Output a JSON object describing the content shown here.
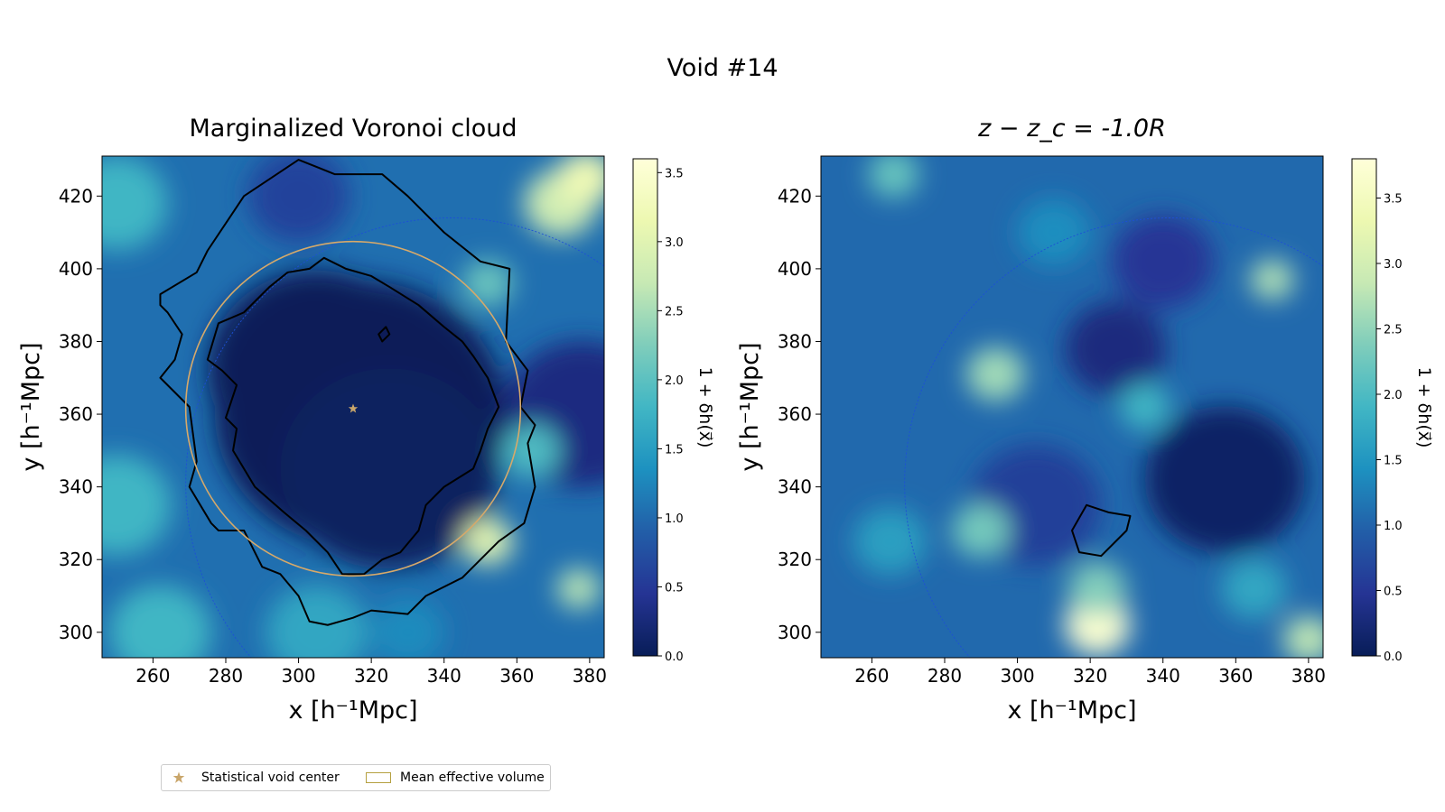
{
  "chart_data": {
    "suptitle": "Void #14",
    "panels": [
      {
        "type": "heatmap",
        "title": "Marginalized Voronoi cloud",
        "title_math": false,
        "xlabel": "x [h⁻¹Mpc]",
        "ylabel": "y [h⁻¹Mpc]",
        "xlim": [
          246,
          384
        ],
        "ylim": [
          293,
          431
        ],
        "xticks": [
          260,
          280,
          300,
          320,
          340,
          360,
          380
        ],
        "yticks": [
          300,
          320,
          340,
          360,
          380,
          400,
          420
        ],
        "colorbar": {
          "label": "1 + δh(x⃗)",
          "range": [
            0.0,
            3.6
          ],
          "ticks": [
            "0.0",
            "0.5",
            "1.0",
            "1.5",
            "2.0",
            "2.5",
            "3.0",
            "3.5"
          ],
          "tick_values": [
            0.0,
            0.5,
            1.0,
            1.5,
            2.0,
            2.5,
            3.0,
            3.5
          ]
        },
        "statistical_void_center": {
          "x": 315,
          "y": 361.5
        },
        "mean_effective_volume_circle": {
          "cx": 315,
          "cy": 361.5,
          "r": 46
        },
        "dashed_circle": {
          "cx": 342,
          "cy": 341,
          "r": 73
        },
        "density_blobs": [
          {
            "x": 317,
            "y": 360,
            "r": 40,
            "v": 0.0
          },
          {
            "x": 305,
            "y": 372,
            "r": 30,
            "v": 0.0
          },
          {
            "x": 325,
            "y": 345,
            "r": 30,
            "v": 0.05
          },
          {
            "x": 378,
            "y": 360,
            "r": 22,
            "v": 0.3
          },
          {
            "x": 300,
            "y": 420,
            "r": 14,
            "v": 0.6
          },
          {
            "x": 352,
            "y": 396,
            "r": 7,
            "v": 2.1
          },
          {
            "x": 372,
            "y": 418,
            "r": 10,
            "v": 2.8
          },
          {
            "x": 379,
            "y": 425,
            "r": 8,
            "v": 3.2
          },
          {
            "x": 250,
            "y": 335,
            "r": 15,
            "v": 1.8
          },
          {
            "x": 352,
            "y": 325,
            "r": 7,
            "v": 3.0
          },
          {
            "x": 377,
            "y": 312,
            "r": 6,
            "v": 2.6
          },
          {
            "x": 262,
            "y": 300,
            "r": 14,
            "v": 1.8
          },
          {
            "x": 305,
            "y": 300,
            "r": 14,
            "v": 1.6
          },
          {
            "x": 250,
            "y": 418,
            "r": 14,
            "v": 1.8
          },
          {
            "x": 364,
            "y": 350,
            "r": 8,
            "v": 1.9
          },
          {
            "x": 330,
            "y": 300,
            "r": 10,
            "v": 1.3
          }
        ],
        "contours": [
          [
            [
              300,
              430
            ],
            [
              285,
              420
            ],
            [
              275,
              405
            ],
            [
              272,
              399
            ],
            [
              262,
              393
            ],
            [
              262,
              390
            ],
            [
              264,
              388
            ],
            [
              268,
              382
            ],
            [
              266,
              375
            ],
            [
              262,
              370
            ],
            [
              270,
              362
            ],
            [
              272,
              347
            ],
            [
              270,
              340
            ],
            [
              276,
              330
            ],
            [
              278,
              328
            ],
            [
              285,
              328
            ],
            [
              288,
              322
            ],
            [
              290,
              318
            ],
            [
              295,
              316
            ],
            [
              300,
              310
            ],
            [
              303,
              303
            ],
            [
              308,
              302
            ],
            [
              315,
              304
            ],
            [
              320,
              306
            ],
            [
              330,
              305
            ],
            [
              335,
              310
            ],
            [
              345,
              315
            ],
            [
              355,
              325
            ],
            [
              362,
              330
            ],
            [
              365,
              340
            ],
            [
              363,
              352
            ],
            [
              365,
              357
            ],
            [
              361,
              362
            ],
            [
              363,
              372
            ],
            [
              357,
              380
            ],
            [
              358,
              400
            ],
            [
              350,
              402
            ],
            [
              340,
              410
            ],
            [
              330,
              420
            ],
            [
              323,
              426
            ],
            [
              310,
              426
            ],
            [
              305,
              428
            ],
            [
              300,
              430
            ]
          ],
          [
            [
              297,
              399
            ],
            [
              292,
              395
            ],
            [
              285,
              388
            ],
            [
              278,
              385
            ],
            [
              275,
              375
            ],
            [
              279,
              372
            ],
            [
              283,
              368
            ],
            [
              280,
              359
            ],
            [
              283,
              356
            ],
            [
              282,
              350
            ],
            [
              285,
              345
            ],
            [
              288,
              340
            ],
            [
              296,
              333
            ],
            [
              302,
              328
            ],
            [
              308,
              322
            ],
            [
              312,
              316
            ],
            [
              318,
              316
            ],
            [
              323,
              320
            ],
            [
              328,
              322
            ],
            [
              333,
              328
            ],
            [
              335,
              335
            ],
            [
              340,
              340
            ],
            [
              348,
              345
            ],
            [
              350,
              350
            ],
            [
              352,
              356
            ],
            [
              355,
              362
            ],
            [
              352,
              370
            ],
            [
              348,
              376
            ],
            [
              345,
              380
            ],
            [
              340,
              384
            ],
            [
              333,
              390
            ],
            [
              325,
              395
            ],
            [
              320,
              398
            ],
            [
              313,
              400
            ],
            [
              307,
              403
            ],
            [
              303,
              400
            ],
            [
              297,
              399
            ]
          ],
          [
            [
              324,
              384
            ],
            [
              322,
              382
            ],
            [
              323,
              380
            ],
            [
              323,
              380
            ],
            [
              325,
              382
            ],
            [
              324,
              384
            ]
          ]
        ]
      },
      {
        "type": "heatmap",
        "title": "z − z_c = -1.0R",
        "title_math": true,
        "xlabel": "x [h⁻¹Mpc]",
        "ylabel": "y [h⁻¹Mpc]",
        "xlim": [
          246,
          384
        ],
        "ylim": [
          293,
          431
        ],
        "xticks": [
          260,
          280,
          300,
          320,
          340,
          360,
          380
        ],
        "yticks": [
          300,
          320,
          340,
          360,
          380,
          400,
          420
        ],
        "colorbar": {
          "label": "1 + δh(x⃗)",
          "range": [
            0.0,
            3.8
          ],
          "ticks": [
            "0.0",
            "0.5",
            "1.0",
            "1.5",
            "2.0",
            "2.5",
            "3.0",
            "3.5"
          ],
          "tick_values": [
            0.0,
            0.5,
            1.0,
            1.5,
            2.0,
            2.5,
            3.0,
            3.5
          ]
        },
        "dashed_circle": {
          "cx": 342,
          "cy": 341,
          "r": 73
        },
        "density_blobs": [
          {
            "x": 357,
            "y": 342,
            "r": 22,
            "v": 0.1
          },
          {
            "x": 327,
            "y": 378,
            "r": 14,
            "v": 0.3
          },
          {
            "x": 305,
            "y": 335,
            "r": 18,
            "v": 0.6
          },
          {
            "x": 340,
            "y": 402,
            "r": 14,
            "v": 0.5
          },
          {
            "x": 294,
            "y": 371,
            "r": 8,
            "v": 2.6
          },
          {
            "x": 322,
            "y": 302,
            "r": 9,
            "v": 3.7
          },
          {
            "x": 322,
            "y": 312,
            "r": 8,
            "v": 2.4
          },
          {
            "x": 290,
            "y": 328,
            "r": 8,
            "v": 2.3
          },
          {
            "x": 370,
            "y": 397,
            "r": 6,
            "v": 2.7
          },
          {
            "x": 380,
            "y": 298,
            "r": 7,
            "v": 2.8
          },
          {
            "x": 266,
            "y": 426,
            "r": 7,
            "v": 2.2
          },
          {
            "x": 335,
            "y": 362,
            "r": 7,
            "v": 1.9
          },
          {
            "x": 265,
            "y": 325,
            "r": 10,
            "v": 1.6
          },
          {
            "x": 365,
            "y": 312,
            "r": 9,
            "v": 1.7
          },
          {
            "x": 310,
            "y": 410,
            "r": 10,
            "v": 1.4
          }
        ],
        "contours": [
          [
            [
              319,
              335
            ],
            [
              315,
              328
            ],
            [
              317,
              322
            ],
            [
              323,
              321
            ],
            [
              330,
              328
            ],
            [
              331,
              332
            ],
            [
              325,
              333
            ],
            [
              319,
              335
            ]
          ]
        ]
      }
    ],
    "legend": {
      "placement": "bottom-left",
      "entries": [
        {
          "label": "Statistical void center",
          "marker": "star",
          "color": "#c9a66b"
        },
        {
          "label": "Mean effective volume",
          "marker": "patch",
          "color": "#b5a040"
        }
      ]
    },
    "colors": {
      "colormap": "YlGnBu",
      "center_marker": "#c9a66b",
      "effective_circle": "#d6a96a",
      "dashed_circle": "#1d4fd6",
      "contour": "#000000"
    }
  }
}
